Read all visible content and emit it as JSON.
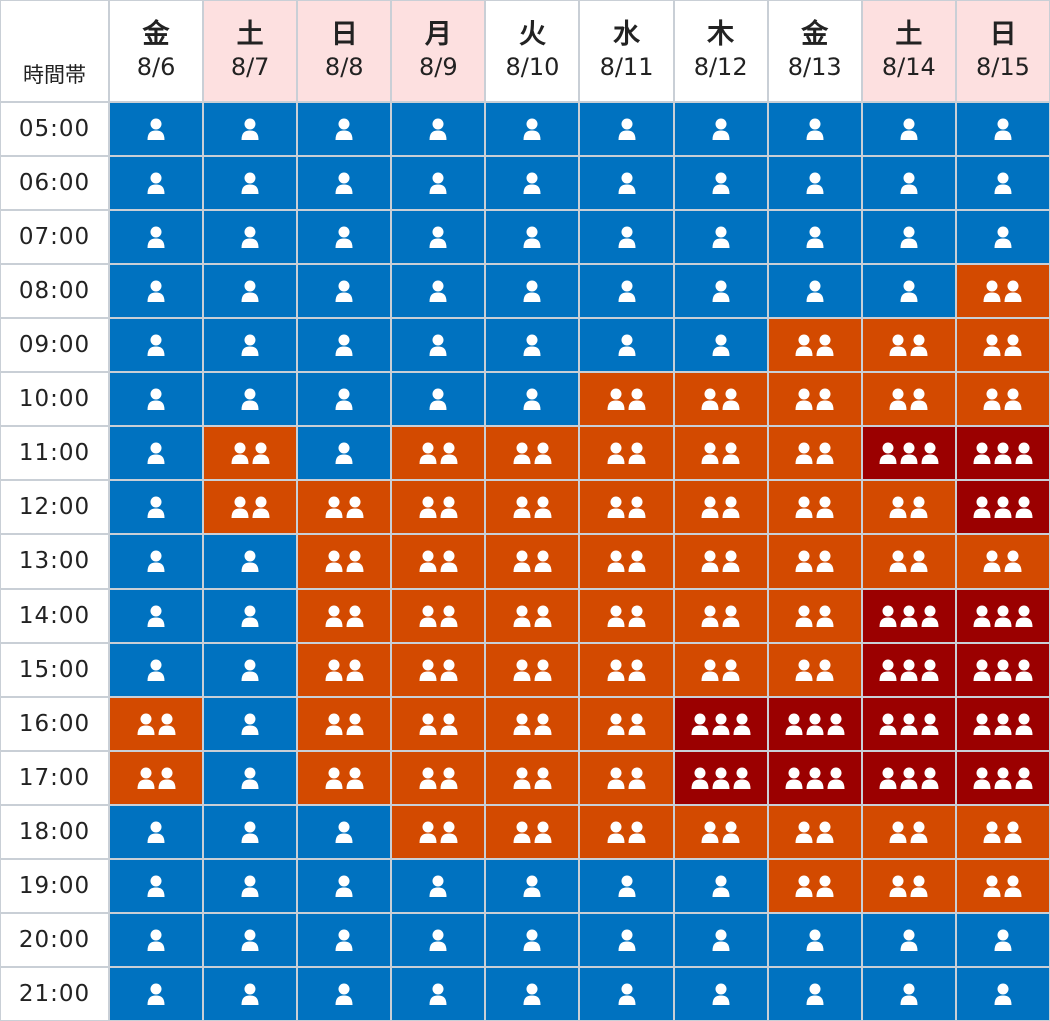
{
  "corner_label": "時間帯",
  "legend": {
    "colors": {
      "1": "#0072c0",
      "2": "#d34a00",
      "3": "#9b0000"
    }
  },
  "chart_data": {
    "type": "heatmap",
    "value_icon": "person-icon",
    "days": [
      {
        "dow": "金",
        "date": "8/6",
        "weekend": false
      },
      {
        "dow": "土",
        "date": "8/7",
        "weekend": true
      },
      {
        "dow": "日",
        "date": "8/8",
        "weekend": true
      },
      {
        "dow": "月",
        "date": "8/9",
        "weekend": true
      },
      {
        "dow": "火",
        "date": "8/10",
        "weekend": false
      },
      {
        "dow": "水",
        "date": "8/11",
        "weekend": false
      },
      {
        "dow": "木",
        "date": "8/12",
        "weekend": false
      },
      {
        "dow": "金",
        "date": "8/13",
        "weekend": false
      },
      {
        "dow": "土",
        "date": "8/14",
        "weekend": true
      },
      {
        "dow": "日",
        "date": "8/15",
        "weekend": true
      }
    ],
    "times": [
      "05:00",
      "06:00",
      "07:00",
      "08:00",
      "09:00",
      "10:00",
      "11:00",
      "12:00",
      "13:00",
      "14:00",
      "15:00",
      "16:00",
      "17:00",
      "18:00",
      "19:00",
      "20:00",
      "21:00"
    ],
    "levels": [
      [
        1,
        1,
        1,
        1,
        1,
        1,
        1,
        1,
        1,
        1
      ],
      [
        1,
        1,
        1,
        1,
        1,
        1,
        1,
        1,
        1,
        1
      ],
      [
        1,
        1,
        1,
        1,
        1,
        1,
        1,
        1,
        1,
        1
      ],
      [
        1,
        1,
        1,
        1,
        1,
        1,
        1,
        1,
        1,
        2
      ],
      [
        1,
        1,
        1,
        1,
        1,
        1,
        1,
        2,
        2,
        2
      ],
      [
        1,
        1,
        1,
        1,
        1,
        2,
        2,
        2,
        2,
        2
      ],
      [
        1,
        2,
        1,
        2,
        2,
        2,
        2,
        2,
        3,
        3
      ],
      [
        1,
        2,
        2,
        2,
        2,
        2,
        2,
        2,
        2,
        3
      ],
      [
        1,
        1,
        2,
        2,
        2,
        2,
        2,
        2,
        2,
        2
      ],
      [
        1,
        1,
        2,
        2,
        2,
        2,
        2,
        2,
        3,
        3
      ],
      [
        1,
        1,
        2,
        2,
        2,
        2,
        2,
        2,
        3,
        3
      ],
      [
        2,
        1,
        2,
        2,
        2,
        2,
        3,
        3,
        3,
        3
      ],
      [
        2,
        1,
        2,
        2,
        2,
        2,
        3,
        3,
        3,
        3
      ],
      [
        1,
        1,
        1,
        2,
        2,
        2,
        2,
        2,
        2,
        2
      ],
      [
        1,
        1,
        1,
        1,
        1,
        1,
        1,
        2,
        2,
        2
      ],
      [
        1,
        1,
        1,
        1,
        1,
        1,
        1,
        1,
        1,
        1
      ],
      [
        1,
        1,
        1,
        1,
        1,
        1,
        1,
        1,
        1,
        1
      ]
    ]
  }
}
